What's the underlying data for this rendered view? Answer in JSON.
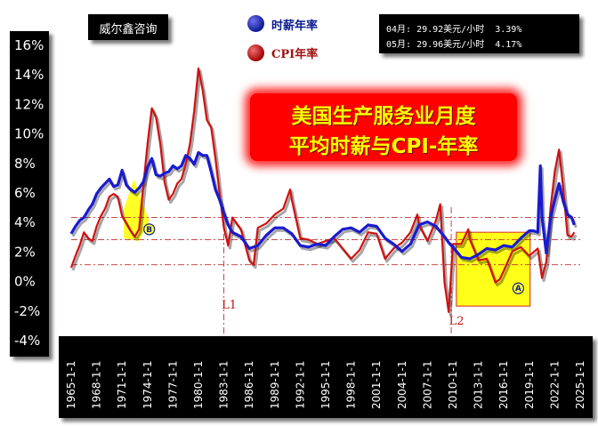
{
  "brand": "威尔鑫咨询",
  "legend": {
    "wage_label": "时薪年率",
    "cpi_label": "CPI年率"
  },
  "info": {
    "line1": "04月: 29.92美元/小时  3.39%",
    "line2": "05月: 29.96美元/小时  4.17%"
  },
  "title": {
    "line1": "美国生产服务业月度",
    "line2": "平均时薪与CPI-年率"
  },
  "colors": {
    "wage": "#1a1ad0",
    "cpi": "#d01010",
    "highlight": "#ffff00",
    "refline": "#c03030",
    "panel": "#000000"
  },
  "chart_data": {
    "type": "line",
    "ylim": [
      -4,
      16
    ],
    "xlim": [
      1965,
      2025
    ],
    "y_ticks": [
      "16%",
      "14%",
      "12%",
      "10%",
      "8%",
      "6%",
      "4%",
      "2%",
      "0%",
      "-2%",
      "-4%"
    ],
    "x_ticks": [
      "1965-1-1",
      "1968-1-1",
      "1971-1-1",
      "1974-1-1",
      "1977-1-1",
      "1980-1-1",
      "1983-1-1",
      "1986-1-1",
      "1989-1-1",
      "1992-1-1",
      "1995-1-1",
      "1998-1-1",
      "2001-1-1",
      "2004-1-1",
      "2007-1-1",
      "2010-1-1",
      "2013-1-1",
      "2016-1-1",
      "2019-1-1",
      "2022-1-1",
      "2025-1-1"
    ],
    "reference_lines": [
      {
        "label": "",
        "y": 4.4
      },
      {
        "label": "",
        "y": 2.9
      },
      {
        "label": "",
        "y": 1.2
      },
      {
        "label": "L1",
        "x": 1983.0
      },
      {
        "label": "L2",
        "x": 2009.8
      }
    ],
    "annotations": [
      "A",
      "B"
    ],
    "series": [
      {
        "name": "时薪年率",
        "x": [
          1965.0,
          1965.5,
          1966.0,
          1966.5,
          1967.0,
          1967.5,
          1968.0,
          1968.5,
          1969.0,
          1969.5,
          1970.0,
          1970.5,
          1971.0,
          1971.5,
          1972.0,
          1972.5,
          1973.0,
          1973.5,
          1974.0,
          1974.5,
          1975.0,
          1975.5,
          1976.0,
          1976.5,
          1977.0,
          1977.5,
          1978.0,
          1978.5,
          1979.0,
          1979.5,
          1980.0,
          1980.5,
          1981.0,
          1981.5,
          1982.0,
          1982.5,
          1983.0,
          1983.5,
          1984.0,
          1985.0,
          1986.0,
          1987.0,
          1988.0,
          1989.0,
          1990.0,
          1991.0,
          1992.0,
          1993.0,
          1994.0,
          1995.0,
          1996.0,
          1997.0,
          1998.0,
          1999.0,
          2000.0,
          2001.0,
          2002.0,
          2003.0,
          2004.0,
          2005.0,
          2006.0,
          2007.0,
          2008.0,
          2009.0,
          2009.5,
          2010.0,
          2011.0,
          2012.0,
          2013.0,
          2014.0,
          2015.0,
          2016.0,
          2017.0,
          2018.0,
          2019.0,
          2019.5,
          2020.0,
          2020.3,
          2020.5,
          2021.0,
          2021.5,
          2022.0,
          2022.5,
          2023.0,
          2023.5,
          2024.0,
          2024.3
        ],
        "values": [
          3.3,
          3.8,
          4.2,
          4.4,
          4.9,
          5.3,
          6.0,
          6.4,
          6.7,
          7.0,
          6.5,
          6.6,
          7.6,
          6.6,
          6.3,
          6.1,
          6.4,
          6.8,
          7.8,
          8.4,
          7.3,
          7.2,
          7.4,
          7.5,
          7.9,
          7.7,
          7.9,
          8.6,
          8.4,
          8.0,
          8.8,
          8.6,
          8.6,
          7.5,
          6.3,
          5.6,
          4.7,
          3.9,
          3.4,
          3.1,
          2.3,
          2.5,
          3.2,
          3.7,
          3.7,
          3.3,
          2.5,
          2.4,
          2.6,
          2.5,
          3.1,
          3.6,
          3.7,
          3.4,
          3.9,
          3.8,
          3.0,
          2.6,
          2.1,
          2.6,
          3.9,
          4.1,
          3.8,
          3.1,
          2.7,
          2.4,
          1.7,
          1.6,
          1.9,
          2.3,
          2.2,
          2.5,
          2.4,
          3.0,
          3.5,
          3.5,
          3.4,
          7.9,
          4.4,
          2.0,
          4.4,
          5.6,
          6.7,
          5.5,
          4.6,
          4.4,
          3.9
        ]
      },
      {
        "name": "CPI年率",
        "x": [
          1965.0,
          1965.5,
          1966.0,
          1966.5,
          1967.0,
          1967.5,
          1968.0,
          1968.5,
          1969.0,
          1969.5,
          1970.0,
          1970.5,
          1971.0,
          1971.5,
          1972.0,
          1972.5,
          1973.0,
          1973.5,
          1974.0,
          1974.5,
          1975.0,
          1975.5,
          1976.0,
          1976.5,
          1977.0,
          1977.5,
          1978.0,
          1978.5,
          1979.0,
          1979.5,
          1980.0,
          1980.5,
          1981.0,
          1981.5,
          1982.0,
          1982.5,
          1983.0,
          1983.5,
          1984.0,
          1985.0,
          1986.0,
          1986.5,
          1987.0,
          1988.0,
          1989.0,
          1990.0,
          1990.8,
          1991.0,
          1992.0,
          1993.0,
          1994.0,
          1995.0,
          1996.0,
          1997.0,
          1998.0,
          1999.0,
          2000.0,
          2001.0,
          2002.0,
          2003.0,
          2004.0,
          2005.0,
          2005.8,
          2006.0,
          2007.0,
          2008.0,
          2008.5,
          2009.0,
          2009.5,
          2010.0,
          2011.0,
          2011.8,
          2012.0,
          2013.0,
          2014.0,
          2015.0,
          2015.5,
          2016.0,
          2017.0,
          2018.0,
          2019.0,
          2020.0,
          2020.5,
          2021.0,
          2021.5,
          2022.0,
          2022.5,
          2023.0,
          2023.5,
          2024.0,
          2024.3
        ],
        "values": [
          1.0,
          1.8,
          2.5,
          3.4,
          3.0,
          2.8,
          3.8,
          4.5,
          5.0,
          5.8,
          6.0,
          5.8,
          4.5,
          4.0,
          3.5,
          3.1,
          3.6,
          6.5,
          9.4,
          11.8,
          11.2,
          9.4,
          6.8,
          5.6,
          6.0,
          6.7,
          7.0,
          8.0,
          9.4,
          11.6,
          14.5,
          13.0,
          11.0,
          10.5,
          8.4,
          6.0,
          3.7,
          2.5,
          4.4,
          3.6,
          1.5,
          1.2,
          3.7,
          4.0,
          4.6,
          5.0,
          6.3,
          5.6,
          3.0,
          2.9,
          2.6,
          2.8,
          3.0,
          2.3,
          1.6,
          2.2,
          3.4,
          3.3,
          1.6,
          2.3,
          2.7,
          3.4,
          4.6,
          3.9,
          2.8,
          4.2,
          5.3,
          0.0,
          -2.0,
          2.6,
          2.6,
          3.6,
          2.9,
          1.5,
          1.6,
          0.0,
          0.2,
          0.8,
          2.1,
          2.4,
          1.8,
          2.3,
          0.3,
          1.4,
          5.0,
          7.5,
          9.0,
          6.4,
          3.2,
          3.1,
          3.4
        ]
      }
    ]
  }
}
